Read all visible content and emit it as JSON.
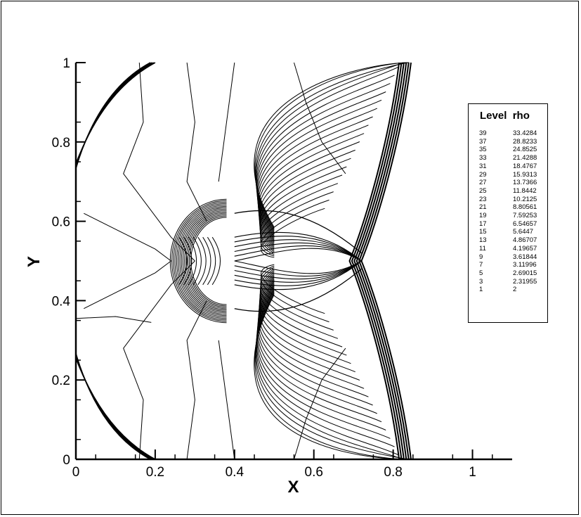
{
  "chart_data": {
    "type": "contour",
    "title": "",
    "xlabel": "X",
    "ylabel": "Y",
    "xlim": [
      0,
      1.1
    ],
    "ylim": [
      0,
      1
    ],
    "x_ticks": [
      "0",
      "0.2",
      "0.4",
      "0.6",
      "0.8",
      "1"
    ],
    "y_ticks": [
      "0",
      "0.2",
      "0.4",
      "0.6",
      "0.8",
      "1"
    ],
    "legend": {
      "title": "Level  rho",
      "position": "right",
      "entries": [
        {
          "level": "39",
          "value": "33.4284"
        },
        {
          "level": "37",
          "value": "28.8233"
        },
        {
          "level": "35",
          "value": "24.8525"
        },
        {
          "level": "33",
          "value": "21.4288"
        },
        {
          "level": "31",
          "value": "18.4767"
        },
        {
          "level": "29",
          "value": "15.9313"
        },
        {
          "level": "27",
          "value": "13.7366"
        },
        {
          "level": "25",
          "value": "11.8442"
        },
        {
          "level": "23",
          "value": "10.2125"
        },
        {
          "level": "21",
          "value": "8.80561"
        },
        {
          "level": "19",
          "value": "7.59253"
        },
        {
          "level": "17",
          "value": "6.54657"
        },
        {
          "level": "15",
          "value": "5.6447"
        },
        {
          "level": "13",
          "value": "4.86707"
        },
        {
          "level": "11",
          "value": "4.19657"
        },
        {
          "level": "9",
          "value": "3.61844"
        },
        {
          "level": "7",
          "value": "3.11996"
        },
        {
          "level": "5",
          "value": "2.69015"
        },
        {
          "level": "3",
          "value": "2.31955"
        },
        {
          "level": "1",
          "value": "2"
        }
      ]
    },
    "line_color": "#000000"
  }
}
